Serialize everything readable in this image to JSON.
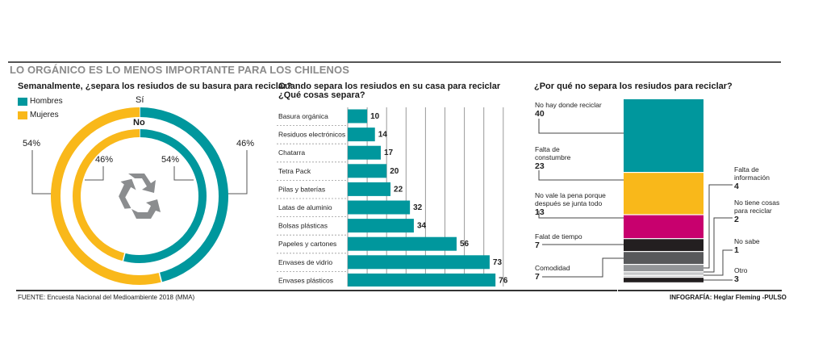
{
  "title": "LO ORGÁNICO ES LO MENOS IMPORTANTE PARA LOS CHILENOS",
  "colors": {
    "teal": "#00979d",
    "yellow": "#f9b81a",
    "magenta": "#c8006e",
    "black": "#231f20",
    "dark_gray": "#58595b",
    "mid_gray": "#939598",
    "light_gray": "#c7c8ca",
    "icon_gray": "#8b8d8f"
  },
  "footer": {
    "source": "FUENTE: Encuesta Nacional del Medioambiente 2018 (MMA)",
    "credit_prefix": "INFOGRAFÍA: Heglar Fleming -",
    "credit_brand": "PULSO"
  },
  "chart_data": [
    {
      "type": "pie",
      "title": "Semanalmente, ¿separa los resiudos de su basura para reciclar?",
      "legend": [
        "Hombres",
        "Mujeres"
      ],
      "legend_position": "top-left",
      "center_icon": "recycle-icon",
      "rings": [
        {
          "name": "Sí",
          "slices": [
            {
              "label": "Hombres",
              "value": 46,
              "display": "46%"
            },
            {
              "label": "Mujeres",
              "value": 54,
              "display": "54%"
            }
          ]
        },
        {
          "name": "No",
          "slices": [
            {
              "label": "Hombres",
              "value": 54,
              "display": "54%"
            },
            {
              "label": "Mujeres",
              "value": 46,
              "display": "46%"
            }
          ]
        }
      ]
    },
    {
      "type": "bar",
      "orientation": "horizontal",
      "title": "Cuando separa los resiudos en su casa para reciclar ¿Qué cosas separa?",
      "title_lines": [
        "Cuando separa los resiudos en su casa para reciclar",
        "¿Qué cosas separa?"
      ],
      "categories": [
        "Basura orgánica",
        "Residuos electrónicos",
        "Chatarra",
        "Tetra Pack",
        "Pilas y baterías",
        "Latas de aluminio",
        "Bolsas plásticas",
        "Papeles y cartones",
        "Envases de vidrio",
        "Envases plásticos"
      ],
      "values": [
        10,
        14,
        17,
        20,
        22,
        32,
        34,
        56,
        73,
        76
      ],
      "xlim": [
        0,
        80
      ],
      "grid": true,
      "grid_step": 10
    },
    {
      "type": "bar",
      "orientation": "stacked-vertical",
      "title": "¿Por qué no separa los resiudos para reciclar?",
      "segments": [
        {
          "label": "No hay donde reciclar",
          "value": 40,
          "color_key": "teal",
          "side": "left"
        },
        {
          "label": "Falta de constumbre",
          "value": 23,
          "color_key": "yellow",
          "side": "left"
        },
        {
          "label": "No vale la pena porque después se junta todo",
          "value": 13,
          "color_key": "magenta",
          "side": "left"
        },
        {
          "label": "Falat de tiempo",
          "value": 7,
          "color_key": "black",
          "side": "left"
        },
        {
          "label": "Comodidad",
          "value": 7,
          "color_key": "dark_gray",
          "side": "left"
        },
        {
          "label": "Falta de información",
          "value": 4,
          "color_key": "mid_gray",
          "side": "right"
        },
        {
          "label": "No tiene cosas para reciclar",
          "value": 2,
          "color_key": "light_gray",
          "side": "right"
        },
        {
          "label": "No sabe",
          "value": 1,
          "color_key": "light_gray",
          "side": "right"
        },
        {
          "label": "Otro",
          "value": 3,
          "color_key": "black",
          "side": "right"
        }
      ],
      "label_lines": {
        "No hay donde reciclar": [
          "No hay donde reciclar"
        ],
        "Falta de constumbre": [
          "Falta de",
          "constumbre"
        ],
        "No vale la pena porque después se junta todo": [
          "No vale la pena porque",
          "después se junta todo"
        ],
        "Falat de tiempo": [
          "Falat de tiempo"
        ],
        "Comodidad": [
          "Comodidad"
        ],
        "Falta de información": [
          "Falta de",
          "información"
        ],
        "No tiene cosas para reciclar": [
          "No tiene cosas",
          "para reciclar"
        ],
        "No sabe": [
          "No sabe"
        ],
        "Otro": [
          "Otro"
        ]
      }
    }
  ]
}
